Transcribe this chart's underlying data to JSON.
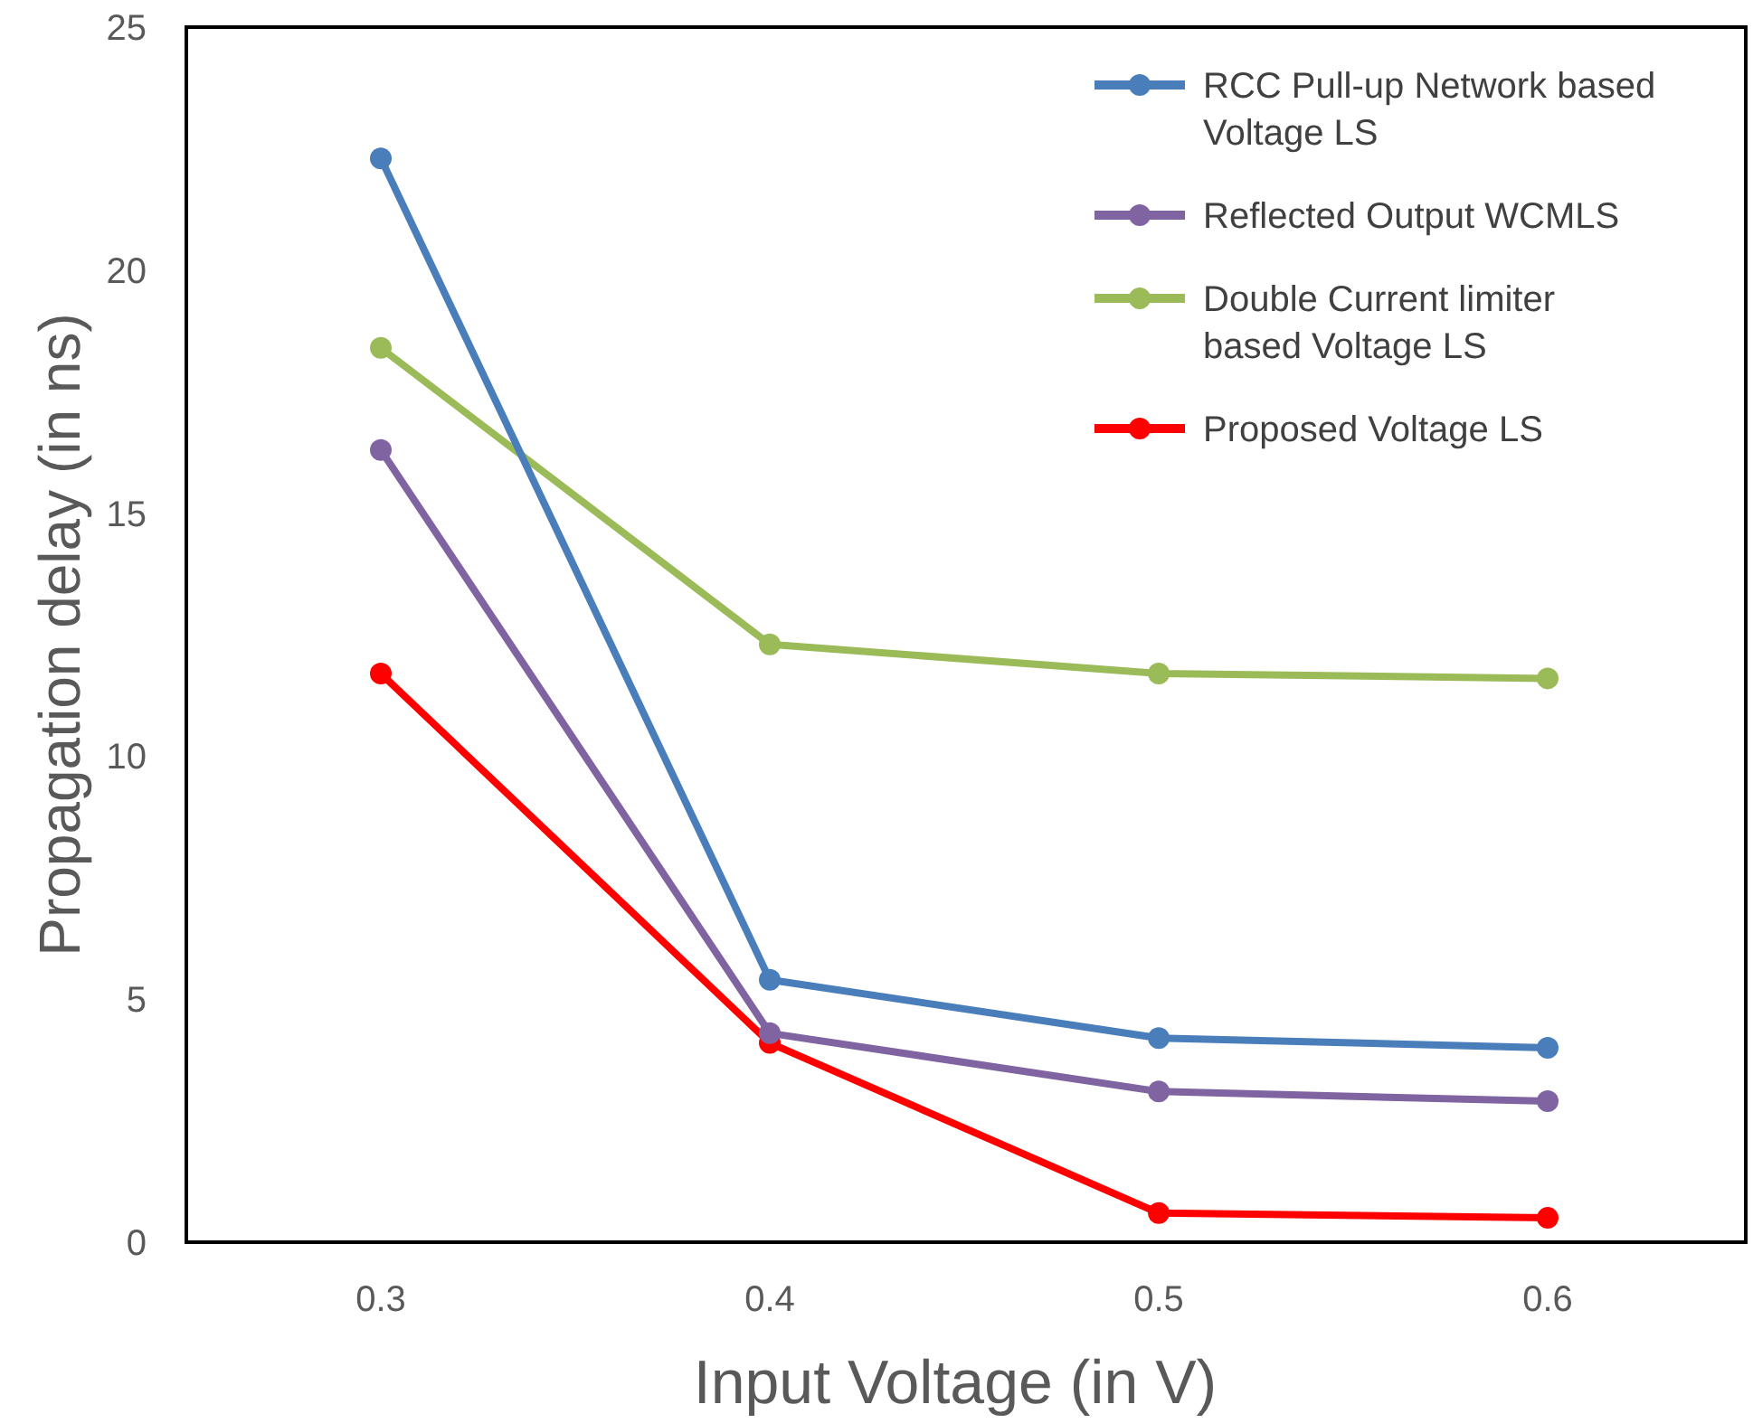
{
  "chart_data": {
    "type": "line",
    "xlabel": "Input Voltage (in V)",
    "ylabel": "Propagation delay (in ns)",
    "categories": [
      "0.3",
      "0.4",
      "0.5",
      "0.6"
    ],
    "ylim": [
      0,
      25
    ],
    "yticks": [
      0,
      5,
      10,
      15,
      20,
      25
    ],
    "grid": false,
    "legend": "top right",
    "marker": "circle",
    "line_style": "solid",
    "series": [
      {
        "name": "RCC Pull-up Network based Voltage LS",
        "color": "#4a7ebb",
        "values": [
          22.3,
          5.4,
          4.2,
          4.0
        ]
      },
      {
        "name": "Reflected Output WCMLS",
        "color": "#8064a2",
        "values": [
          16.3,
          4.3,
          3.1,
          2.9
        ]
      },
      {
        "name": "Double Current limiter based Voltage LS",
        "color": "#9bbb59",
        "values": [
          18.4,
          12.3,
          11.7,
          11.6
        ]
      },
      {
        "name": "Proposed Voltage LS",
        "color": "#ff0000",
        "values": [
          11.7,
          4.1,
          0.6,
          0.5
        ]
      }
    ]
  }
}
